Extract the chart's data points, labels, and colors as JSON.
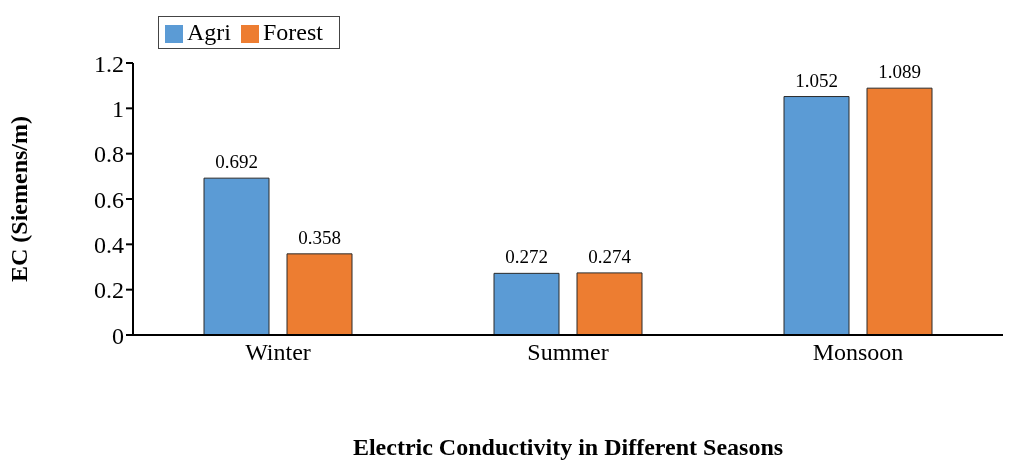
{
  "chart_data": {
    "type": "bar",
    "xlabel": "Electric Conductivity in Different Seasons",
    "ylabel": "EC (Siemens/m)",
    "categories": [
      "Winter",
      "Summer",
      "Monsoon"
    ],
    "series": [
      {
        "name": "Agri",
        "color": "#5b9bd5",
        "values": [
          0.692,
          0.272,
          1.052
        ]
      },
      {
        "name": "Forest",
        "color": "#ed7d31",
        "values": [
          0.358,
          0.274,
          1.089
        ]
      }
    ],
    "ylim": [
      0,
      1.2
    ],
    "yticks": [
      0,
      0.2,
      0.4,
      0.6,
      0.8,
      1,
      1.2
    ],
    "grid": false,
    "legend": "top left",
    "data_labels": true
  }
}
